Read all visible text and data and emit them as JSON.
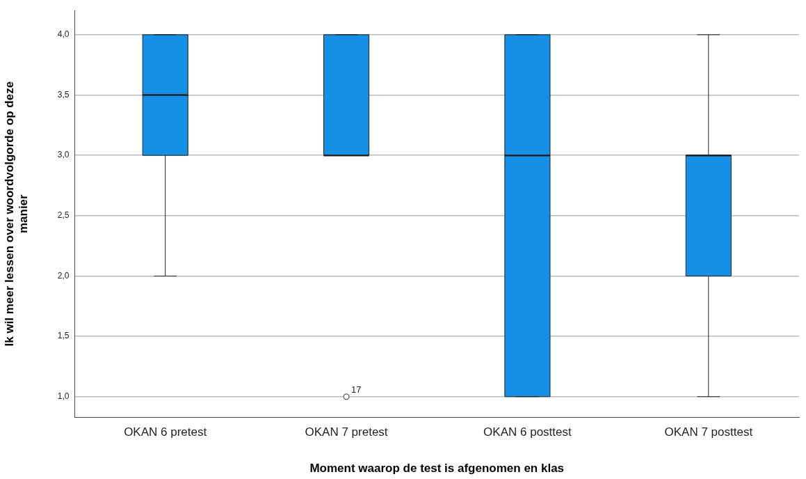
{
  "chart_data": {
    "type": "box",
    "xlabel": "Moment waarop de test is afgenomen en klas",
    "ylabel": "Ik wil meer lessen over woordvolgorde op deze manier",
    "categories": [
      "OKAN 6 pretest",
      "OKAN 7 pretest",
      "OKAN 6 posttest",
      "OKAN 7 posttest"
    ],
    "color": "#1490e6",
    "boxes": [
      {
        "low": 2,
        "q1": 3,
        "median": 3.5,
        "q3": 4,
        "high": 4
      },
      {
        "low": 3,
        "q1": 3,
        "median": 3,
        "q3": 4,
        "high": 4,
        "outliers": [
          1
        ]
      },
      {
        "low": 1,
        "q1": 1,
        "median": 3,
        "q3": 4,
        "high": 4
      },
      {
        "low": 1,
        "q1": 2,
        "median": 3,
        "q3": 3,
        "high": 4
      }
    ],
    "annotations": [
      "17"
    ],
    "ylim": [
      0.83,
      4.2
    ],
    "yticks": [
      {
        "value": 1,
        "label": "1,0"
      },
      {
        "value": 1.5,
        "label": "1,5"
      },
      {
        "value": 2,
        "label": "2,0"
      },
      {
        "value": 2.5,
        "label": "2,5"
      },
      {
        "value": 3,
        "label": "3,0"
      },
      {
        "value": 3.5,
        "label": "3,5"
      },
      {
        "value": 4,
        "label": "4,0"
      }
    ],
    "grid": "y"
  }
}
